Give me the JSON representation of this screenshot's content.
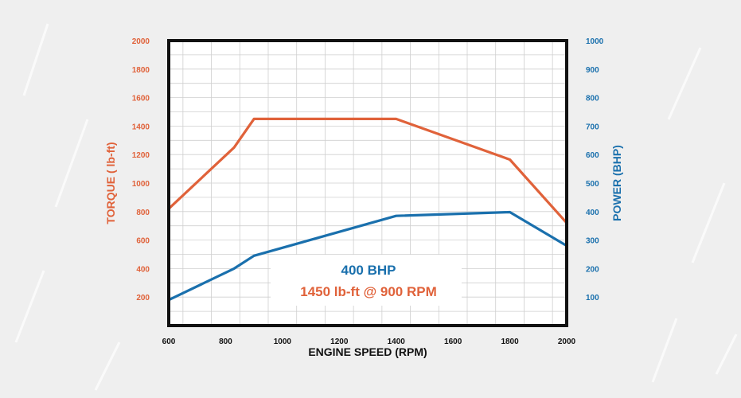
{
  "chart_data": {
    "type": "line",
    "xlabel": "ENGINE SPEED (RPM)",
    "ylabel_left": "TORQUE ( lb-ft)",
    "ylabel_right": "POWER (BHP)",
    "xlim": [
      600,
      2000
    ],
    "ylim_left": [
      0,
      2000
    ],
    "ylim_right": [
      0,
      1000
    ],
    "x_ticks": [
      600,
      800,
      1000,
      1200,
      1400,
      1600,
      1800,
      2000
    ],
    "y_ticks_left": [
      200,
      400,
      600,
      800,
      1000,
      1200,
      1400,
      1600,
      1800,
      2000
    ],
    "y_ticks_right": [
      100,
      200,
      300,
      400,
      500,
      600,
      700,
      800,
      900,
      1000
    ],
    "grid": true,
    "series": [
      {
        "name": "TORQUE ( lb-ft)",
        "axis": "left",
        "color": "#e0623a",
        "points": [
          [
            600,
            820
          ],
          [
            830,
            1250
          ],
          [
            900,
            1450
          ],
          [
            1400,
            1450
          ],
          [
            1800,
            1165
          ],
          [
            2000,
            720
          ]
        ]
      },
      {
        "name": "POWER (BHP)",
        "axis": "right",
        "color": "#1a70ad",
        "points": [
          [
            600,
            90
          ],
          [
            830,
            200
          ],
          [
            900,
            245
          ],
          [
            1400,
            385
          ],
          [
            1800,
            398
          ],
          [
            2000,
            280
          ]
        ]
      }
    ],
    "annotations": [
      "400 BHP",
      "1450 lb-ft @ 900 RPM"
    ]
  },
  "colors": {
    "torque": "#e0623a",
    "power": "#1a70ad",
    "frame": "#111111",
    "grid": "#cfcfcf"
  }
}
